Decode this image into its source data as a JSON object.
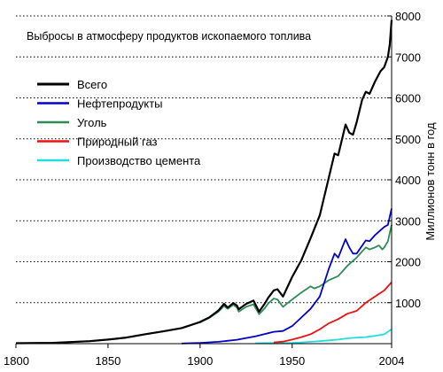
{
  "chart_data": {
    "type": "line",
    "title": "Выбросы в атмосферу продуктов ископаемого топлива",
    "ylabel": "Миллионов тонн в год",
    "xlabel": "",
    "xlim": [
      1800,
      2004
    ],
    "ylim": [
      0,
      8000
    ],
    "x_ticks": [
      1800,
      1850,
      1900,
      1950,
      2004
    ],
    "y_ticks": [
      1000,
      2000,
      3000,
      4000,
      5000,
      6000,
      7000,
      8000
    ],
    "grid": "horizontal dotted",
    "y_axis_side": "right",
    "legend_position": "top-left",
    "series": [
      {
        "name": "Всего",
        "color": "#000000",
        "points": [
          [
            1800,
            10
          ],
          [
            1820,
            20
          ],
          [
            1840,
            60
          ],
          [
            1850,
            100
          ],
          [
            1860,
            150
          ],
          [
            1870,
            230
          ],
          [
            1880,
            300
          ],
          [
            1890,
            380
          ],
          [
            1900,
            530
          ],
          [
            1905,
            640
          ],
          [
            1910,
            810
          ],
          [
            1913,
            970
          ],
          [
            1915,
            880
          ],
          [
            1918,
            990
          ],
          [
            1920,
            930
          ],
          [
            1921,
            840
          ],
          [
            1925,
            970
          ],
          [
            1929,
            1050
          ],
          [
            1932,
            780
          ],
          [
            1935,
            970
          ],
          [
            1937,
            1120
          ],
          [
            1940,
            1300
          ],
          [
            1942,
            1330
          ],
          [
            1945,
            1150
          ],
          [
            1950,
            1630
          ],
          [
            1955,
            2040
          ],
          [
            1960,
            2570
          ],
          [
            1965,
            3130
          ],
          [
            1970,
            4070
          ],
          [
            1973,
            4640
          ],
          [
            1975,
            4600
          ],
          [
            1979,
            5350
          ],
          [
            1981,
            5150
          ],
          [
            1983,
            5100
          ],
          [
            1985,
            5400
          ],
          [
            1988,
            5950
          ],
          [
            1990,
            6150
          ],
          [
            1992,
            6100
          ],
          [
            1995,
            6400
          ],
          [
            1998,
            6650
          ],
          [
            2000,
            6750
          ],
          [
            2002,
            7000
          ],
          [
            2003,
            7300
          ],
          [
            2004,
            7900
          ]
        ]
      },
      {
        "name": "Нефтепродукты",
        "color": "#0000cc",
        "points": [
          [
            1890,
            5
          ],
          [
            1900,
            20
          ],
          [
            1910,
            45
          ],
          [
            1920,
            95
          ],
          [
            1930,
            180
          ],
          [
            1940,
            290
          ],
          [
            1945,
            310
          ],
          [
            1950,
            430
          ],
          [
            1955,
            640
          ],
          [
            1960,
            850
          ],
          [
            1965,
            1150
          ],
          [
            1970,
            1840
          ],
          [
            1973,
            2200
          ],
          [
            1975,
            2100
          ],
          [
            1979,
            2550
          ],
          [
            1981,
            2350
          ],
          [
            1983,
            2200
          ],
          [
            1985,
            2200
          ],
          [
            1990,
            2520
          ],
          [
            1992,
            2500
          ],
          [
            1995,
            2650
          ],
          [
            2000,
            2850
          ],
          [
            2002,
            2900
          ],
          [
            2004,
            3300
          ]
        ]
      },
      {
        "name": "Уголь",
        "color": "#2e8b57",
        "points": [
          [
            1800,
            10
          ],
          [
            1820,
            20
          ],
          [
            1840,
            60
          ],
          [
            1850,
            100
          ],
          [
            1860,
            150
          ],
          [
            1870,
            230
          ],
          [
            1880,
            300
          ],
          [
            1890,
            380
          ],
          [
            1900,
            520
          ],
          [
            1905,
            630
          ],
          [
            1910,
            780
          ],
          [
            1913,
            920
          ],
          [
            1915,
            850
          ],
          [
            1918,
            950
          ],
          [
            1920,
            880
          ],
          [
            1921,
            780
          ],
          [
            1925,
            900
          ],
          [
            1929,
            960
          ],
          [
            1932,
            720
          ],
          [
            1935,
            860
          ],
          [
            1937,
            980
          ],
          [
            1940,
            1100
          ],
          [
            1942,
            1080
          ],
          [
            1945,
            900
          ],
          [
            1950,
            1080
          ],
          [
            1955,
            1250
          ],
          [
            1960,
            1400
          ],
          [
            1962,
            1350
          ],
          [
            1965,
            1400
          ],
          [
            1970,
            1550
          ],
          [
            1975,
            1650
          ],
          [
            1980,
            1900
          ],
          [
            1985,
            2100
          ],
          [
            1988,
            2250
          ],
          [
            1990,
            2350
          ],
          [
            1992,
            2300
          ],
          [
            1995,
            2350
          ],
          [
            1997,
            2400
          ],
          [
            1999,
            2300
          ],
          [
            2000,
            2350
          ],
          [
            2002,
            2500
          ],
          [
            2004,
            2900
          ]
        ]
      },
      {
        "name": "Природный газ",
        "color": "#ee1111",
        "points": [
          [
            1940,
            30
          ],
          [
            1945,
            50
          ],
          [
            1950,
            100
          ],
          [
            1955,
            160
          ],
          [
            1960,
            230
          ],
          [
            1965,
            350
          ],
          [
            1970,
            500
          ],
          [
            1975,
            600
          ],
          [
            1980,
            730
          ],
          [
            1985,
            800
          ],
          [
            1990,
            1000
          ],
          [
            1995,
            1150
          ],
          [
            2000,
            1300
          ],
          [
            2004,
            1500
          ]
        ]
      },
      {
        "name": "Производство цемента",
        "color": "#22dddd",
        "points": [
          [
            1930,
            10
          ],
          [
            1940,
            15
          ],
          [
            1950,
            20
          ],
          [
            1955,
            30
          ],
          [
            1960,
            45
          ],
          [
            1965,
            60
          ],
          [
            1970,
            80
          ],
          [
            1975,
            100
          ],
          [
            1980,
            130
          ],
          [
            1985,
            150
          ],
          [
            1990,
            160
          ],
          [
            1995,
            190
          ],
          [
            2000,
            230
          ],
          [
            2004,
            350
          ]
        ]
      }
    ]
  }
}
